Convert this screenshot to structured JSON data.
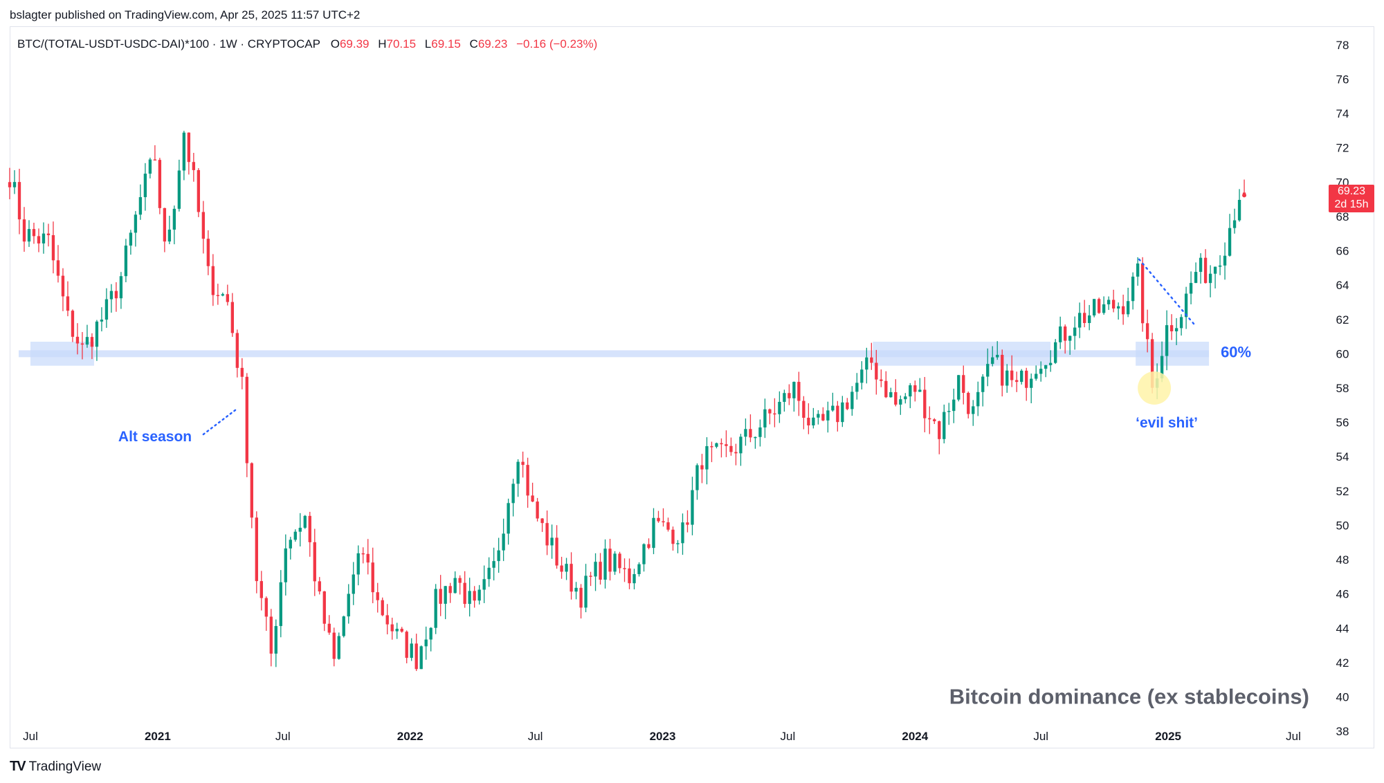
{
  "header": {
    "published": "bslagter published on TradingView.com, Apr 25, 2025 11:57 UTC+2"
  },
  "legend": {
    "symbol": "BTC/(TOTAL-USDT-USDC-DAI)*100 · 1W · CRYPTOCAP",
    "open_label": "O",
    "open": "69.39",
    "high_label": "H",
    "high": "70.15",
    "low_label": "L",
    "low": "69.15",
    "close_label": "C",
    "close": "69.23",
    "change": "−0.16 (−0.23%)"
  },
  "price_tag": {
    "price": "69.23",
    "countdown": "2d 15h"
  },
  "footer": {
    "brand": "TradingView",
    "logo": "tradingview-logo-icon"
  },
  "colors": {
    "up": "#089981",
    "down": "#f23645",
    "zone": "#c8dafb",
    "annotation": "#2962ff",
    "highlight": "#fff3a8"
  },
  "chart_data": {
    "type": "candlestick",
    "title": "Bitcoin dominance (ex stablecoins)",
    "interval": "1W",
    "x_range": [
      "2020-06-01",
      "2025-08-01"
    ],
    "ylim": [
      37,
      79
    ],
    "y_ticks": [
      38,
      40,
      42,
      44,
      46,
      48,
      50,
      52,
      54,
      56,
      58,
      60,
      62,
      64,
      66,
      68,
      70,
      72,
      74,
      76,
      78
    ],
    "x_ticks": [
      {
        "date": "2020-07-01",
        "label": "Jul",
        "bold": false
      },
      {
        "date": "2021-01-01",
        "label": "2021",
        "bold": true
      },
      {
        "date": "2021-07-01",
        "label": "Jul",
        "bold": false
      },
      {
        "date": "2022-01-01",
        "label": "2022",
        "bold": true
      },
      {
        "date": "2022-07-01",
        "label": "Jul",
        "bold": false
      },
      {
        "date": "2023-01-01",
        "label": "2023",
        "bold": true
      },
      {
        "date": "2023-07-01",
        "label": "Jul",
        "bold": false
      },
      {
        "date": "2024-01-01",
        "label": "2024",
        "bold": true
      },
      {
        "date": "2024-07-01",
        "label": "Jul",
        "bold": false
      },
      {
        "date": "2025-01-01",
        "label": "2025",
        "bold": true
      },
      {
        "date": "2025-07-01",
        "label": "Jul",
        "bold": false
      }
    ],
    "grid": false,
    "anchors": [
      {
        "date": "2020-06-01",
        "value": 70.5
      },
      {
        "date": "2020-06-22",
        "value": 67.0
      },
      {
        "date": "2020-07-27",
        "value": 66.5
      },
      {
        "date": "2020-08-24",
        "value": 62.0
      },
      {
        "date": "2020-09-14",
        "value": 60.2
      },
      {
        "date": "2020-10-19",
        "value": 62.5
      },
      {
        "date": "2020-11-09",
        "value": 64.5
      },
      {
        "date": "2020-12-07",
        "value": 69.0
      },
      {
        "date": "2020-12-28",
        "value": 71.5
      },
      {
        "date": "2021-01-11",
        "value": 66.0
      },
      {
        "date": "2021-01-25",
        "value": 69.0
      },
      {
        "date": "2021-02-08",
        "value": 73.0
      },
      {
        "date": "2021-02-22",
        "value": 70.0
      },
      {
        "date": "2021-03-15",
        "value": 64.5
      },
      {
        "date": "2021-04-12",
        "value": 63.0
      },
      {
        "date": "2021-05-03",
        "value": 58.0
      },
      {
        "date": "2021-05-24",
        "value": 47.0
      },
      {
        "date": "2021-06-14",
        "value": 42.5
      },
      {
        "date": "2021-07-05",
        "value": 49.0
      },
      {
        "date": "2021-08-02",
        "value": 50.5
      },
      {
        "date": "2021-08-23",
        "value": 45.5
      },
      {
        "date": "2021-09-13",
        "value": 42.0
      },
      {
        "date": "2021-10-04",
        "value": 46.0
      },
      {
        "date": "2021-10-25",
        "value": 48.5
      },
      {
        "date": "2021-11-15",
        "value": 45.5
      },
      {
        "date": "2021-12-13",
        "value": 43.5
      },
      {
        "date": "2022-01-10",
        "value": 42.3
      },
      {
        "date": "2022-02-07",
        "value": 45.5
      },
      {
        "date": "2022-03-07",
        "value": 47.0
      },
      {
        "date": "2022-04-04",
        "value": 45.0
      },
      {
        "date": "2022-05-02",
        "value": 47.5
      },
      {
        "date": "2022-06-06",
        "value": 54.5
      },
      {
        "date": "2022-06-27",
        "value": 51.0
      },
      {
        "date": "2022-08-08",
        "value": 47.5
      },
      {
        "date": "2022-09-05",
        "value": 46.0
      },
      {
        "date": "2022-10-10",
        "value": 48.0
      },
      {
        "date": "2022-11-14",
        "value": 47.0
      },
      {
        "date": "2022-12-19",
        "value": 50.0
      },
      {
        "date": "2023-01-30",
        "value": 49.5
      },
      {
        "date": "2023-02-27",
        "value": 54.0
      },
      {
        "date": "2023-03-27",
        "value": 54.0
      },
      {
        "date": "2023-05-01",
        "value": 55.0
      },
      {
        "date": "2023-06-19",
        "value": 57.0
      },
      {
        "date": "2023-07-10",
        "value": 58.0
      },
      {
        "date": "2023-08-07",
        "value": 55.5
      },
      {
        "date": "2023-09-11",
        "value": 56.5
      },
      {
        "date": "2023-10-30",
        "value": 59.5
      },
      {
        "date": "2023-12-04",
        "value": 57.0
      },
      {
        "date": "2024-01-01",
        "value": 58.0
      },
      {
        "date": "2024-02-05",
        "value": 55.5
      },
      {
        "date": "2024-03-04",
        "value": 58.5
      },
      {
        "date": "2024-03-25",
        "value": 56.5
      },
      {
        "date": "2024-04-22",
        "value": 59.5
      },
      {
        "date": "2024-05-27",
        "value": 58.0
      },
      {
        "date": "2024-06-24",
        "value": 59.5
      },
      {
        "date": "2024-07-22",
        "value": 60.5
      },
      {
        "date": "2024-08-19",
        "value": 62.0
      },
      {
        "date": "2024-09-23",
        "value": 62.5
      },
      {
        "date": "2024-10-28",
        "value": 63.0
      },
      {
        "date": "2024-11-18",
        "value": 64.5
      },
      {
        "date": "2024-12-09",
        "value": 58.0
      },
      {
        "date": "2024-12-30",
        "value": 61.5
      },
      {
        "date": "2025-01-20",
        "value": 62.5
      },
      {
        "date": "2025-02-10",
        "value": 64.8
      },
      {
        "date": "2025-03-03",
        "value": 64.8
      },
      {
        "date": "2025-03-24",
        "value": 66.5
      },
      {
        "date": "2025-04-14",
        "value": 69.39
      },
      {
        "date": "2025-04-21",
        "value": 69.23
      }
    ],
    "last": {
      "open": 69.39,
      "high": 70.15,
      "low": 69.15,
      "close": 69.23
    },
    "annotations": {
      "zone_label": "60%",
      "zone_level": 60,
      "alt_season": "Alt season",
      "evil": "‘evil shit’"
    }
  }
}
